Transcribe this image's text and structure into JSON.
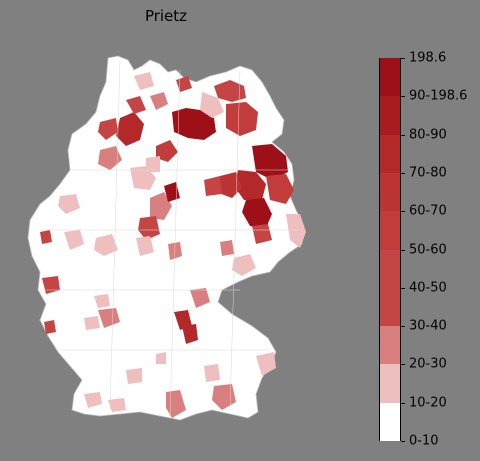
{
  "map": {
    "title": "Prietz",
    "region_color_default": "#ffffff",
    "border_color": "#c8c8c8",
    "background": "#808080"
  },
  "legend": {
    "items": [
      {
        "label": "0-10",
        "color": "#ffffff"
      },
      {
        "label": "10-20",
        "color": "#efbfbf"
      },
      {
        "label": "20-30",
        "color": "#da7f7f"
      },
      {
        "label": "30-40",
        "color": "#c54545"
      },
      {
        "label": "40-50",
        "color": "#c54545"
      },
      {
        "label": "50-60",
        "color": "#c23c3c"
      },
      {
        "label": "60-70",
        "color": "#bb3333"
      },
      {
        "label": "70-80",
        "color": "#b32929"
      },
      {
        "label": "80-90",
        "color": "#a81c20"
      },
      {
        "label": "90-198.6",
        "color": "#9e1018"
      },
      {
        "label": "198.6",
        "color": "#900a14"
      }
    ]
  }
}
